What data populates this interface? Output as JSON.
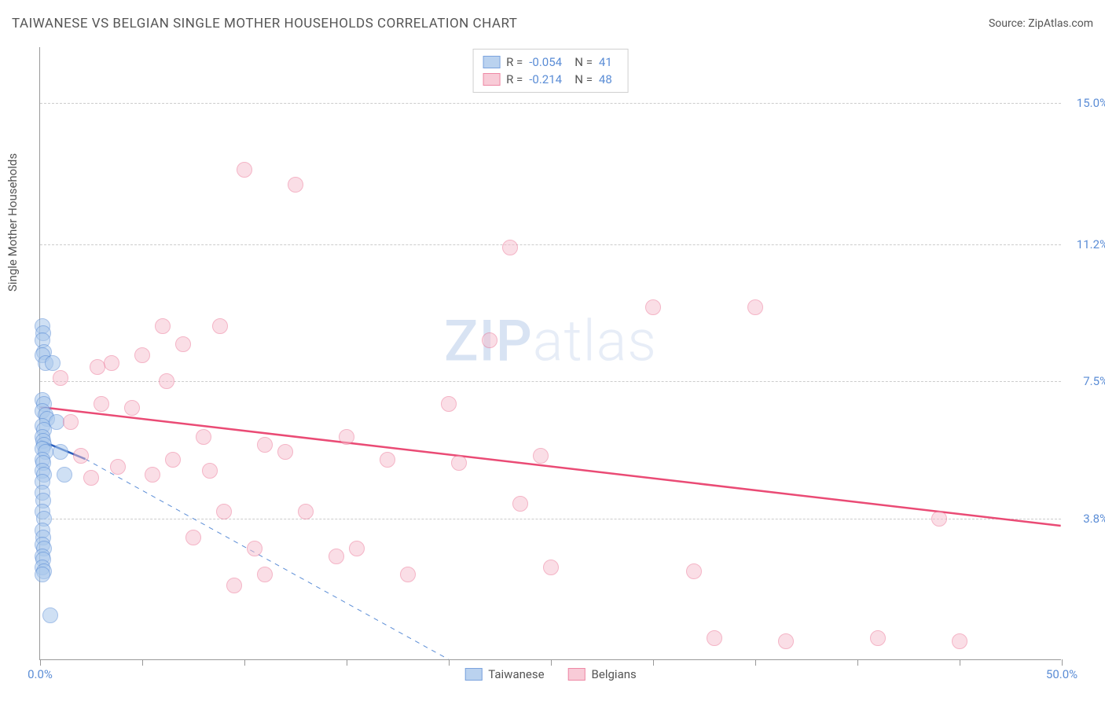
{
  "title": "TAIWANESE VS BELGIAN SINGLE MOTHER HOUSEHOLDS CORRELATION CHART",
  "source": "Source: ZipAtlas.com",
  "watermark_zip": "ZIP",
  "watermark_atlas": "atlas",
  "y_axis_label": "Single Mother Households",
  "chart": {
    "type": "scatter",
    "xlim": [
      0,
      50
    ],
    "ylim": [
      0,
      16.5
    ],
    "x_ticks": [
      0,
      5,
      10,
      15,
      20,
      25,
      30,
      35,
      40,
      45,
      50
    ],
    "x_tick_labels": {
      "0": "0.0%",
      "50": "50.0%"
    },
    "y_gridlines": [
      3.8,
      7.5,
      11.2,
      15.0
    ],
    "y_tick_labels": [
      "3.8%",
      "7.5%",
      "11.2%",
      "15.0%"
    ],
    "background_color": "#ffffff",
    "grid_color": "#cccccc",
    "axis_color": "#999999",
    "label_color": "#5b8dd6",
    "point_radius": 10,
    "series": [
      {
        "name": "Taiwanese",
        "fill": "#a9c8ec",
        "stroke": "#5b8dd6",
        "fill_opacity": 0.55,
        "R": "-0.054",
        "N": "41",
        "trend": {
          "x1": 0,
          "y1": 5.9,
          "x2": 2.2,
          "y2": 5.4,
          "color": "#2b5fbd",
          "width": 2.5,
          "dash": false
        },
        "trend_ext": {
          "x1": 2.2,
          "y1": 5.4,
          "x2": 20,
          "y2": 0,
          "color": "#5b8dd6",
          "width": 1,
          "dash": true
        },
        "points": [
          [
            0.1,
            9.0
          ],
          [
            0.15,
            8.8
          ],
          [
            0.1,
            8.6
          ],
          [
            0.2,
            8.3
          ],
          [
            0.1,
            8.2
          ],
          [
            0.25,
            8.0
          ],
          [
            0.1,
            7.0
          ],
          [
            0.2,
            6.9
          ],
          [
            0.1,
            6.7
          ],
          [
            0.25,
            6.6
          ],
          [
            0.35,
            6.5
          ],
          [
            0.1,
            6.3
          ],
          [
            0.2,
            6.2
          ],
          [
            0.1,
            6.0
          ],
          [
            0.15,
            5.9
          ],
          [
            0.2,
            5.8
          ],
          [
            0.1,
            5.7
          ],
          [
            0.25,
            5.6
          ],
          [
            0.1,
            5.4
          ],
          [
            0.15,
            5.3
          ],
          [
            0.1,
            5.1
          ],
          [
            0.2,
            5.0
          ],
          [
            0.1,
            4.8
          ],
          [
            0.1,
            4.5
          ],
          [
            0.15,
            4.3
          ],
          [
            0.1,
            4.0
          ],
          [
            0.2,
            3.8
          ],
          [
            0.1,
            3.5
          ],
          [
            0.15,
            3.3
          ],
          [
            0.1,
            3.1
          ],
          [
            0.2,
            3.0
          ],
          [
            0.1,
            2.8
          ],
          [
            0.15,
            2.7
          ],
          [
            0.1,
            2.5
          ],
          [
            0.2,
            2.4
          ],
          [
            0.1,
            2.3
          ],
          [
            0.6,
            8.0
          ],
          [
            0.8,
            6.4
          ],
          [
            1.0,
            5.6
          ],
          [
            1.2,
            5.0
          ],
          [
            0.5,
            1.2
          ]
        ]
      },
      {
        "name": "Belgians",
        "fill": "#f7bfce",
        "stroke": "#ea6b8f",
        "fill_opacity": 0.5,
        "R": "-0.214",
        "N": "48",
        "trend": {
          "x1": 0,
          "y1": 6.8,
          "x2": 50,
          "y2": 3.6,
          "color": "#ea4b75",
          "width": 2.5,
          "dash": false
        },
        "points": [
          [
            1.5,
            6.4
          ],
          [
            2.0,
            5.5
          ],
          [
            2.5,
            4.9
          ],
          [
            3.0,
            6.9
          ],
          [
            3.5,
            8.0
          ],
          [
            3.8,
            5.2
          ],
          [
            4.5,
            6.8
          ],
          [
            5.0,
            8.2
          ],
          [
            5.5,
            5.0
          ],
          [
            6.0,
            9.0
          ],
          [
            6.5,
            5.4
          ],
          [
            7.0,
            8.5
          ],
          [
            7.5,
            3.3
          ],
          [
            8.0,
            6.0
          ],
          [
            8.3,
            5.1
          ],
          [
            8.8,
            9.0
          ],
          [
            9.0,
            4.0
          ],
          [
            9.5,
            2.0
          ],
          [
            10.0,
            13.2
          ],
          [
            10.5,
            3.0
          ],
          [
            11.0,
            5.8
          ],
          [
            11.0,
            2.3
          ],
          [
            12.0,
            5.6
          ],
          [
            12.5,
            12.8
          ],
          [
            13.0,
            4.0
          ],
          [
            14.5,
            2.8
          ],
          [
            15.0,
            6.0
          ],
          [
            15.5,
            3.0
          ],
          [
            17.0,
            5.4
          ],
          [
            18.0,
            2.3
          ],
          [
            20.0,
            6.9
          ],
          [
            20.5,
            5.3
          ],
          [
            22.0,
            8.6
          ],
          [
            23.0,
            11.1
          ],
          [
            23.5,
            4.2
          ],
          [
            24.5,
            5.5
          ],
          [
            25.0,
            2.5
          ],
          [
            30.0,
            9.5
          ],
          [
            32.0,
            2.4
          ],
          [
            33.0,
            0.6
          ],
          [
            35.0,
            9.5
          ],
          [
            36.5,
            0.5
          ],
          [
            41.0,
            0.6
          ],
          [
            44.0,
            3.8
          ],
          [
            45.0,
            0.5
          ],
          [
            1.0,
            7.6
          ],
          [
            2.8,
            7.9
          ],
          [
            6.2,
            7.5
          ]
        ]
      }
    ]
  },
  "legend_top": {
    "r_label": "R =",
    "n_label": "N ="
  },
  "legend_bottom": [
    "Taiwanese",
    "Belgians"
  ]
}
